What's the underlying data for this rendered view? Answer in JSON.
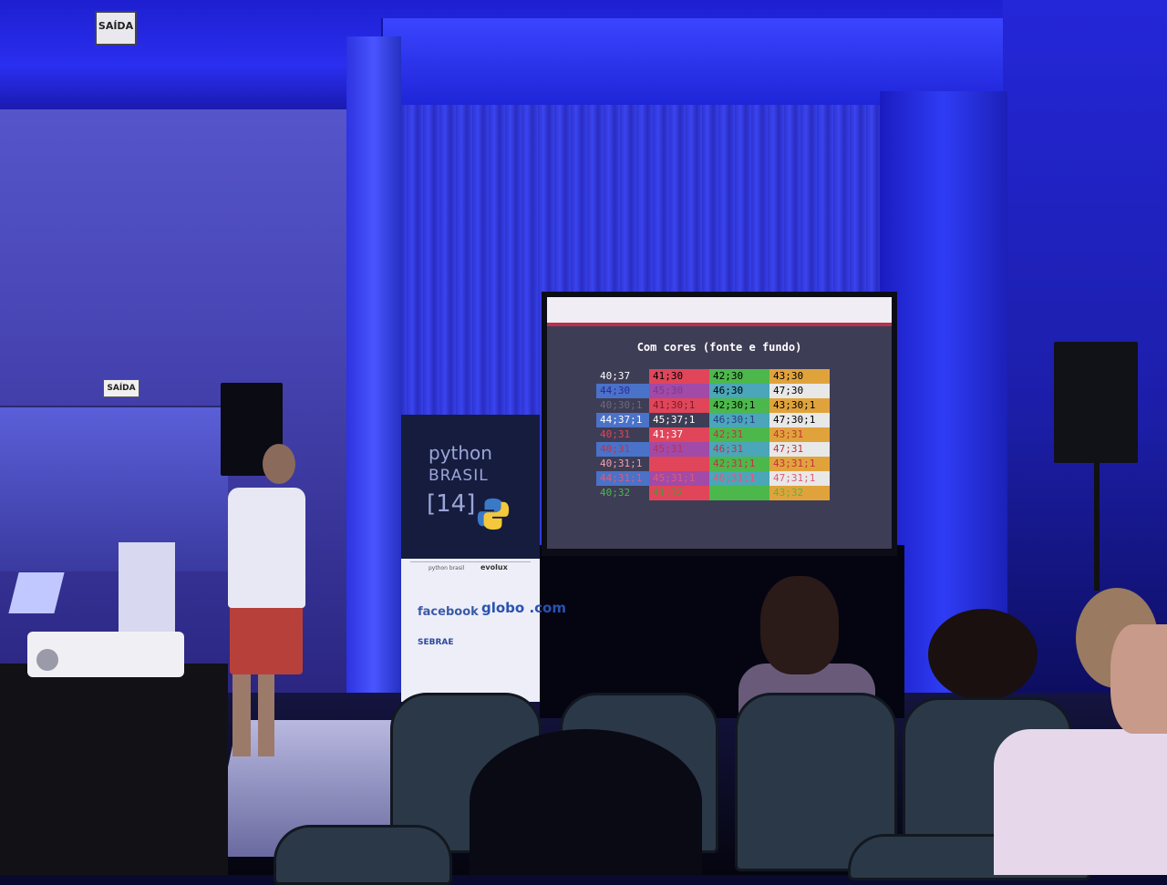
{
  "signs": {
    "exit_top": "SAÍDA",
    "exit_left": "SAÍDA"
  },
  "slide": {
    "title": "Com cores (fonte e fundo)",
    "rows": [
      [
        {
          "t": "40;37",
          "fg": "#ffffff",
          "bg": "#3e3d56"
        },
        {
          "t": "41;30",
          "fg": "#000000",
          "bg": "#e0455a"
        },
        {
          "t": "42;30",
          "fg": "#000000",
          "bg": "#4cb84c"
        },
        {
          "t": "43;30",
          "fg": "#000000",
          "bg": "#e0a33c"
        }
      ],
      [
        {
          "t": "44;30",
          "fg": "#2a2a9a",
          "bg": "#4a72c8"
        },
        {
          "t": "45;30",
          "fg": "#7a3a8a",
          "bg": "#a14aa8"
        },
        {
          "t": "46;30",
          "fg": "#000000",
          "bg": "#4aa6b8"
        },
        {
          "t": "47;30",
          "fg": "#000000",
          "bg": "#e8e8e8"
        }
      ],
      [
        {
          "t": "40;30;1",
          "fg": "#6a6a7a",
          "bg": "#3e3d56"
        },
        {
          "t": "41;30;1",
          "fg": "#7a1a2a",
          "bg": "#e0455a"
        },
        {
          "t": "42;30;1",
          "fg": "#000000",
          "bg": "#4cb84c"
        },
        {
          "t": "43;30;1",
          "fg": "#000000",
          "bg": "#e0a33c"
        }
      ],
      [
        {
          "t": "44;37;1",
          "fg": "#ffffff",
          "bg": "#4a72c8"
        },
        {
          "t": "45;37;1",
          "fg": "#ffffff",
          "bg": "#3e3d56"
        },
        {
          "t": "46;30;1",
          "fg": "#2a3a8a",
          "bg": "#4aa6b8"
        },
        {
          "t": "47;30;1",
          "fg": "#000000",
          "bg": "#e8e8e8"
        }
      ],
      [
        {
          "t": "40;31",
          "fg": "#e0455a",
          "bg": "#3e3d56"
        },
        {
          "t": "41;37",
          "fg": "#ffffff",
          "bg": "#e0455a"
        },
        {
          "t": "42;31",
          "fg": "#c43040",
          "bg": "#4cb84c"
        },
        {
          "t": "43;31",
          "fg": "#c43040",
          "bg": "#e0a33c"
        }
      ],
      [
        {
          "t": "40;31",
          "fg": "#c43040",
          "bg": "#4a72c8"
        },
        {
          "t": "45;31",
          "fg": "#c43040",
          "bg": "#a14aa8"
        },
        {
          "t": "46;31",
          "fg": "#c43040",
          "bg": "#4aa6b8"
        },
        {
          "t": "47;31",
          "fg": "#c43040",
          "bg": "#e8e8e8"
        }
      ],
      [
        {
          "t": "40;31;1",
          "fg": "#f0a0b0",
          "bg": "#3e3d56"
        },
        {
          "t": "",
          "fg": "#ff6070",
          "bg": "#e0455a"
        },
        {
          "t": "42;31;1",
          "fg": "#c43040",
          "bg": "#4cb84c"
        },
        {
          "t": "43;31;1",
          "fg": "#c43040",
          "bg": "#e0a33c"
        }
      ],
      [
        {
          "t": "44;31;1",
          "fg": "#e05a7a",
          "bg": "#4a72c8"
        },
        {
          "t": "45;31;1",
          "fg": "#e05a7a",
          "bg": "#a14aa8"
        },
        {
          "t": "46;31;1",
          "fg": "#e05a7a",
          "bg": "#4aa6b8"
        },
        {
          "t": "47;31;1",
          "fg": "#e05a7a",
          "bg": "#e8e8e8"
        }
      ],
      [
        {
          "t": "40;32",
          "fg": "#4cb84c",
          "bg": "#3e3d56"
        },
        {
          "t": "41;32",
          "fg": "#3ca03c",
          "bg": "#e0455a"
        },
        {
          "t": "",
          "fg": "#4cb84c",
          "bg": "#4cb84c"
        },
        {
          "t": "43;32",
          "fg": "#4cb84c",
          "bg": "#e0a33c"
        }
      ]
    ]
  },
  "banner": {
    "line1": "python",
    "line2": "BRASIL",
    "line3": "[14]",
    "sponsors": {
      "python_brasil": "python brasil",
      "evolux": "evolux",
      "facebook": "facebook",
      "globo": "globo .com",
      "sebrae": "SEBRAE"
    }
  },
  "colors": {
    "stage_light": "#2a2ff0",
    "screen_bg": "#3e3d56",
    "nav_accent": "#b8324a"
  }
}
